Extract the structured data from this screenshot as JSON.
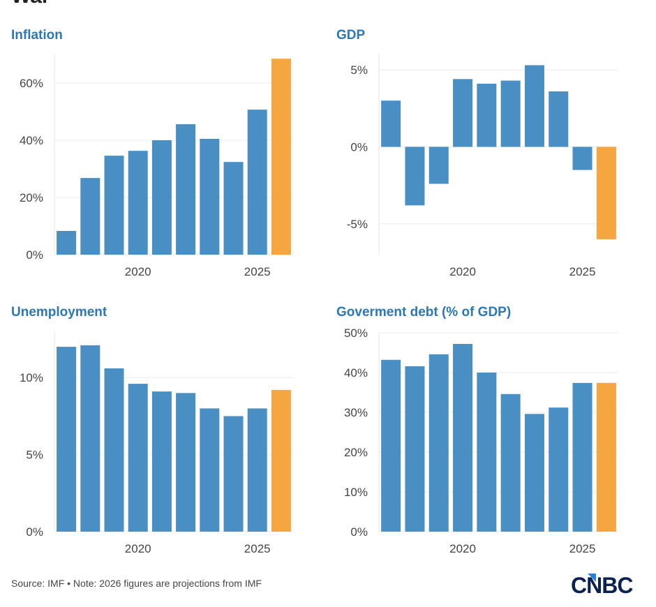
{
  "headline": "War",
  "source_note": "Source: IMF • Note: 2026 figures are projections from IMF",
  "logo_text": "CNBC",
  "colors": {
    "actual": "#4a8fc4",
    "projection": "#f5a640",
    "title": "#2b78b5"
  },
  "chart_data": [
    {
      "type": "bar",
      "title": "Inflation",
      "categories": [
        2017,
        2018,
        2019,
        2020,
        2021,
        2022,
        2023,
        2024,
        2025,
        2026
      ],
      "values": [
        8.3,
        26.8,
        34.6,
        36.3,
        40.0,
        45.6,
        40.5,
        32.4,
        50.7,
        68.5
      ],
      "projection_categories": [
        2026
      ],
      "ylim": [
        0,
        70
      ],
      "yticks": [
        0,
        20,
        40,
        60
      ],
      "ytick_labels": [
        "0%",
        "20%",
        "40%",
        "60%"
      ],
      "xticks": [
        2020,
        2025
      ],
      "xtick_labels": [
        "2020",
        "2025"
      ],
      "grid": true
    },
    {
      "type": "bar",
      "title": "GDP",
      "categories": [
        2017,
        2018,
        2019,
        2020,
        2021,
        2022,
        2023,
        2024,
        2025,
        2026
      ],
      "values": [
        3.0,
        -3.8,
        -2.4,
        4.4,
        4.1,
        4.3,
        5.3,
        3.6,
        -1.5,
        -6.0
      ],
      "projection_categories": [
        2026
      ],
      "ylim": [
        -7,
        6
      ],
      "yticks": [
        -5,
        0,
        5
      ],
      "ytick_labels": [
        "-5%",
        "0%",
        "5%"
      ],
      "xticks": [
        2020,
        2025
      ],
      "xtick_labels": [
        "2020",
        "2025"
      ],
      "grid": true
    },
    {
      "type": "bar",
      "title": "Unemployment",
      "categories": [
        2017,
        2018,
        2019,
        2020,
        2021,
        2022,
        2023,
        2024,
        2025,
        2026
      ],
      "values": [
        12.0,
        12.1,
        10.6,
        9.6,
        9.1,
        9.0,
        8.0,
        7.5,
        8.0,
        9.2
      ],
      "projection_categories": [
        2026
      ],
      "ylim": [
        0,
        13
      ],
      "yticks": [
        0,
        5,
        10
      ],
      "ytick_labels": [
        "0%",
        "5%",
        "10%"
      ],
      "xticks": [
        2020,
        2025
      ],
      "xtick_labels": [
        "2020",
        "2025"
      ],
      "grid": true
    },
    {
      "type": "bar",
      "title": "Goverment debt (% of GDP)",
      "categories": [
        2017,
        2018,
        2019,
        2020,
        2021,
        2022,
        2023,
        2024,
        2025,
        2026
      ],
      "values": [
        43.2,
        41.6,
        44.6,
        47.2,
        40.0,
        34.6,
        29.6,
        31.2,
        37.4,
        37.4
      ],
      "projection_categories": [
        2026
      ],
      "ylim": [
        0,
        50
      ],
      "yticks": [
        0,
        10,
        20,
        30,
        40,
        50
      ],
      "ytick_labels": [
        "0%",
        "10%",
        "20%",
        "30%",
        "40%",
        "50%"
      ],
      "xticks": [
        2020,
        2025
      ],
      "xtick_labels": [
        "2020",
        "2025"
      ],
      "grid": true
    }
  ]
}
